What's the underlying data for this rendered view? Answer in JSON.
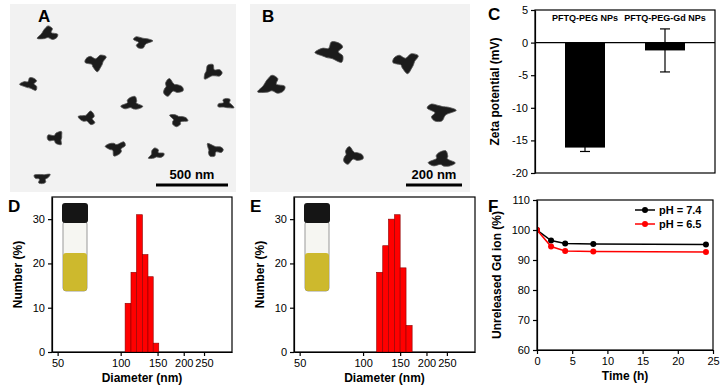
{
  "chart_data": [
    {
      "type": "image",
      "title": "A",
      "annotations": [
        "500 nm"
      ]
    },
    {
      "type": "image",
      "title": "B",
      "annotations": [
        "200 nm"
      ]
    },
    {
      "type": "bar",
      "title": "C",
      "categories": [
        "PFTQ-PEG NPs",
        "PFTQ-PEG-Gd NPs"
      ],
      "values": [
        -16.1,
        -1.2
      ],
      "errors": [
        0.6,
        3.3
      ],
      "color": "#000000",
      "y_label": "Zeta potential (mV)",
      "ylim": [
        -20,
        5
      ],
      "yticks": [
        -20,
        -15,
        -10,
        -5,
        0,
        5
      ]
    },
    {
      "type": "histogram",
      "title": "D",
      "bins": [
        105,
        112,
        119,
        127,
        135,
        143,
        152
      ],
      "values": [
        11,
        18,
        31,
        22,
        17,
        2
      ],
      "color": "#ff0000",
      "log": "x",
      "x_label": "Diameter (nm)",
      "y_label": "Number (%)",
      "xlim": [
        47,
        340
      ],
      "xticks": [
        50,
        100,
        150,
        200,
        250
      ],
      "ylim": [
        0,
        35
      ],
      "yticks": [
        0,
        10,
        20,
        30
      ]
    },
    {
      "type": "histogram",
      "title": "E",
      "bins": [
        116,
        124,
        132,
        141,
        150,
        160,
        171
      ],
      "values": [
        18,
        24,
        30,
        31,
        19,
        6
      ],
      "color": "#ff0000",
      "log": "x",
      "x_label": "Diameter (nm)",
      "y_label": "Number (%)",
      "xlim": [
        47,
        340
      ],
      "xticks": [
        50,
        100,
        150,
        200,
        250
      ],
      "ylim": [
        0,
        35
      ],
      "yticks": [
        0,
        10,
        20,
        30
      ]
    },
    {
      "type": "line",
      "title": "F",
      "x": [
        0,
        2,
        4,
        8,
        24
      ],
      "series": [
        {
          "name": "pH = 7.4",
          "color": "#000000",
          "marker": "circle",
          "values": [
            100,
            96.5,
            95.5,
            95.3,
            95.2
          ]
        },
        {
          "name": "pH = 6.5",
          "color": "#ff0000",
          "marker": "circle",
          "values": [
            100,
            94.5,
            93,
            92.8,
            92.7
          ]
        }
      ],
      "x_label": "Time (h)",
      "y_label": "Unreleased Gd ion (%)",
      "xlim": [
        0,
        25
      ],
      "xticks": [
        0,
        5,
        10,
        15,
        20,
        25
      ],
      "ylim": [
        60,
        110
      ],
      "yticks": [
        60,
        70,
        80,
        90,
        100,
        110
      ],
      "legend": "upper right"
    }
  ]
}
